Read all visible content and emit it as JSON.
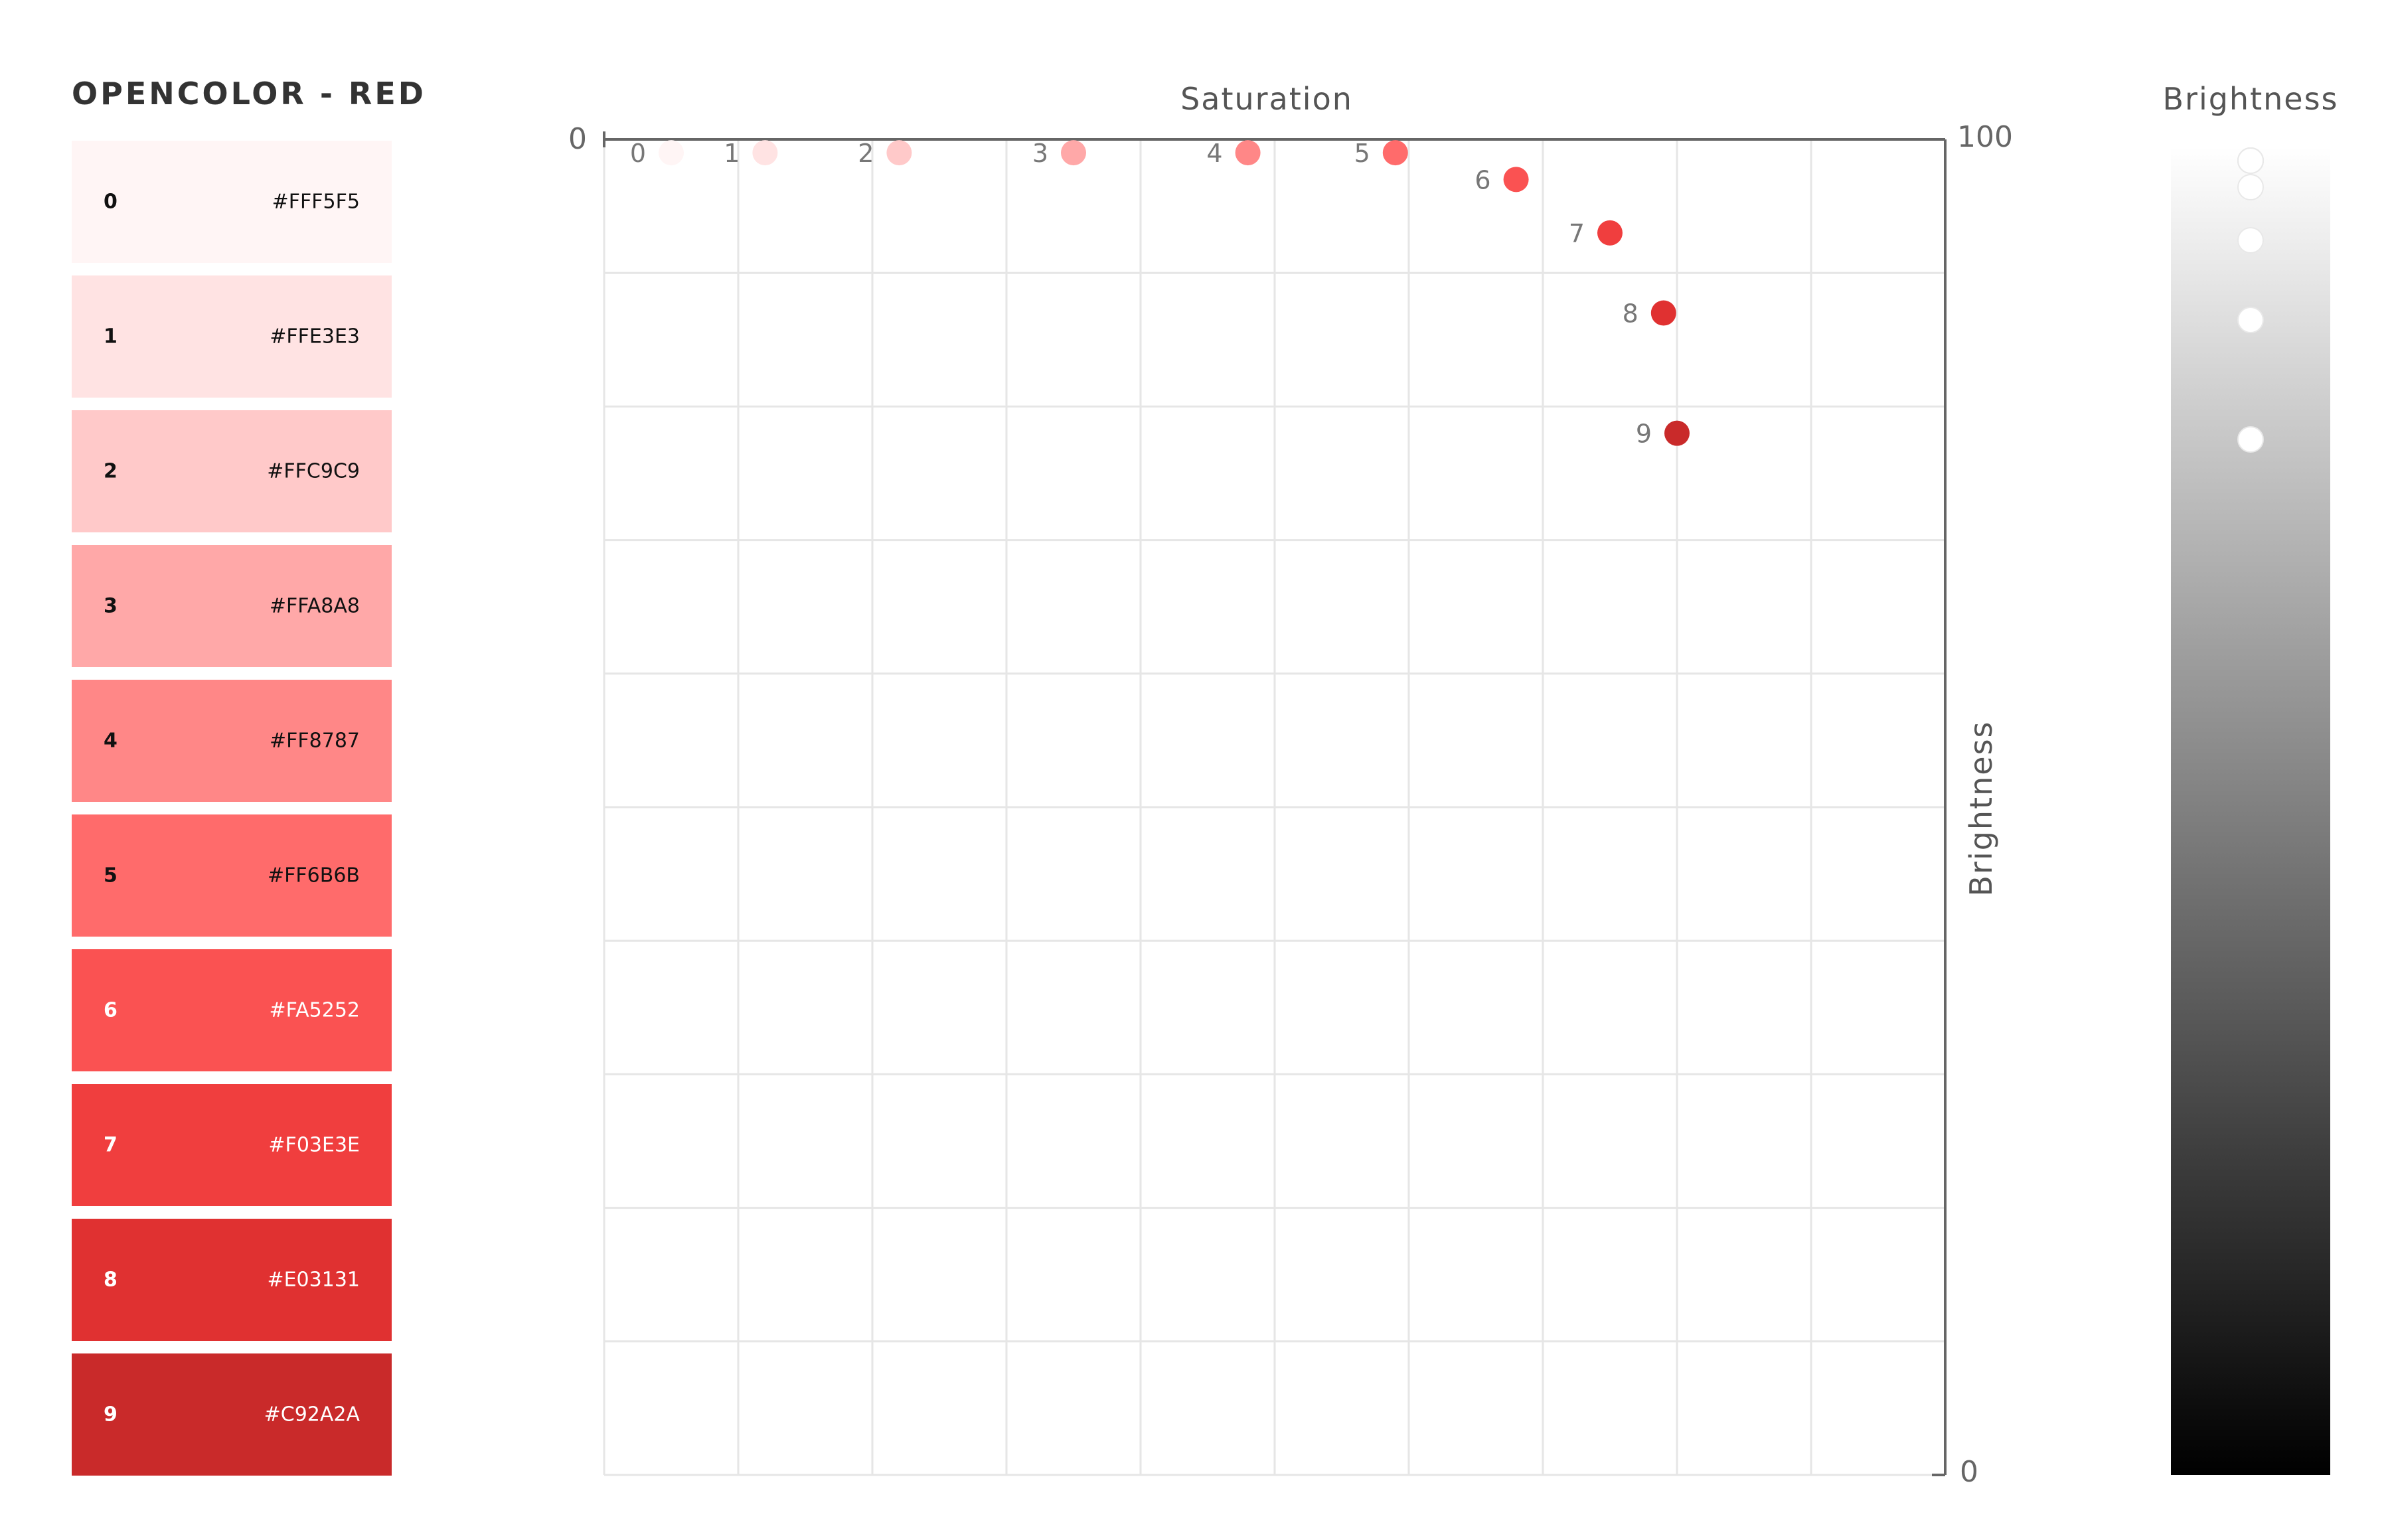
{
  "palette": {
    "title": "OPENCOLOR - RED",
    "swatches": [
      {
        "index": "0",
        "hex": "#FFF5F5"
      },
      {
        "index": "1",
        "hex": "#FFE3E3"
      },
      {
        "index": "2",
        "hex": "#FFC9C9"
      },
      {
        "index": "3",
        "hex": "#FFA8A8"
      },
      {
        "index": "4",
        "hex": "#FF8787"
      },
      {
        "index": "5",
        "hex": "#FF6B6B"
      },
      {
        "index": "6",
        "hex": "#FA5252"
      },
      {
        "index": "7",
        "hex": "#F03E3E"
      },
      {
        "index": "8",
        "hex": "#E03131"
      },
      {
        "index": "9",
        "hex": "#C92A2A"
      }
    ]
  },
  "chart_data": {
    "type": "scatter",
    "title": "",
    "xlabel": "Saturation",
    "ylabel": "Brightness",
    "xlim": [
      0,
      100
    ],
    "ylim": [
      0,
      100
    ],
    "x_tick_labels": [
      "0"
    ],
    "y_tick_labels": [
      "100",
      "0"
    ],
    "grid": true,
    "points": [
      {
        "label": "0",
        "x": 5,
        "y": 99,
        "color": "#FFF5F5"
      },
      {
        "label": "1",
        "x": 12,
        "y": 99,
        "color": "#FFE3E3"
      },
      {
        "label": "2",
        "x": 22,
        "y": 99,
        "color": "#FFC9C9"
      },
      {
        "label": "3",
        "x": 35,
        "y": 99,
        "color": "#FFA8A8"
      },
      {
        "label": "4",
        "x": 48,
        "y": 99,
        "color": "#FF8787"
      },
      {
        "label": "5",
        "x": 59,
        "y": 99,
        "color": "#FF6B6B"
      },
      {
        "label": "6",
        "x": 68,
        "y": 97,
        "color": "#FA5252"
      },
      {
        "label": "7",
        "x": 75,
        "y": 93,
        "color": "#F03E3E"
      },
      {
        "label": "8",
        "x": 79,
        "y": 87,
        "color": "#E03131"
      },
      {
        "label": "9",
        "x": 80,
        "y": 78,
        "color": "#C92A2A"
      }
    ],
    "brightness_scale": {
      "label": "Brightness",
      "gradient_top": "#FFFFFF",
      "gradient_bottom": "#000000",
      "marker_color": "#FFFFFF"
    }
  }
}
